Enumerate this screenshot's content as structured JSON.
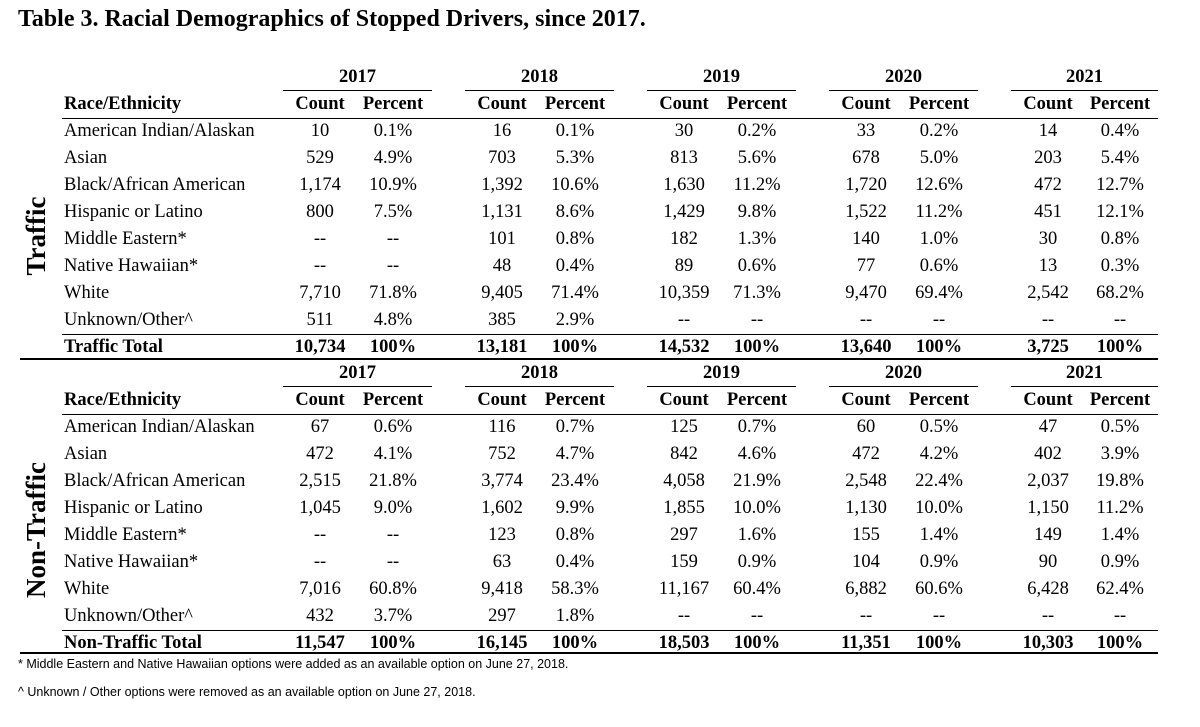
{
  "title": "Table 3. Racial Demographics of Stopped Drivers, since 2017.",
  "years": [
    "2017",
    "2018",
    "2019",
    "2020",
    "2021"
  ],
  "subheaders": {
    "race": "Race/Ethnicity",
    "count": "Count",
    "percent": "Percent"
  },
  "sections": [
    {
      "label": "Traffic",
      "rows": [
        {
          "race": "American Indian/Alaskan",
          "vals": [
            [
              "10",
              "0.1%"
            ],
            [
              "16",
              "0.1%"
            ],
            [
              "30",
              "0.2%"
            ],
            [
              "33",
              "0.2%"
            ],
            [
              "14",
              "0.4%"
            ]
          ]
        },
        {
          "race": "Asian",
          "vals": [
            [
              "529",
              "4.9%"
            ],
            [
              "703",
              "5.3%"
            ],
            [
              "813",
              "5.6%"
            ],
            [
              "678",
              "5.0%"
            ],
            [
              "203",
              "5.4%"
            ]
          ]
        },
        {
          "race": "Black/African American",
          "vals": [
            [
              "1,174",
              "10.9%"
            ],
            [
              "1,392",
              "10.6%"
            ],
            [
              "1,630",
              "11.2%"
            ],
            [
              "1,720",
              "12.6%"
            ],
            [
              "472",
              "12.7%"
            ]
          ]
        },
        {
          "race": "Hispanic or Latino",
          "vals": [
            [
              "800",
              "7.5%"
            ],
            [
              "1,131",
              "8.6%"
            ],
            [
              "1,429",
              "9.8%"
            ],
            [
              "1,522",
              "11.2%"
            ],
            [
              "451",
              "12.1%"
            ]
          ]
        },
        {
          "race": "Middle Eastern*",
          "vals": [
            [
              "--",
              "--"
            ],
            [
              "101",
              "0.8%"
            ],
            [
              "182",
              "1.3%"
            ],
            [
              "140",
              "1.0%"
            ],
            [
              "30",
              "0.8%"
            ]
          ]
        },
        {
          "race": "Native Hawaiian*",
          "vals": [
            [
              "--",
              "--"
            ],
            [
              "48",
              "0.4%"
            ],
            [
              "89",
              "0.6%"
            ],
            [
              "77",
              "0.6%"
            ],
            [
              "13",
              "0.3%"
            ]
          ]
        },
        {
          "race": "White",
          "vals": [
            [
              "7,710",
              "71.8%"
            ],
            [
              "9,405",
              "71.4%"
            ],
            [
              "10,359",
              "71.3%"
            ],
            [
              "9,470",
              "69.4%"
            ],
            [
              "2,542",
              "68.2%"
            ]
          ]
        },
        {
          "race": "Unknown/Other^",
          "vals": [
            [
              "511",
              "4.8%"
            ],
            [
              "385",
              "2.9%"
            ],
            [
              "--",
              "--"
            ],
            [
              "--",
              "--"
            ],
            [
              "--",
              "--"
            ]
          ]
        }
      ],
      "total": {
        "race": "Traffic Total",
        "vals": [
          [
            "10,734",
            "100%"
          ],
          [
            "13,181",
            "100%"
          ],
          [
            "14,532",
            "100%"
          ],
          [
            "13,640",
            "100%"
          ],
          [
            "3,725",
            "100%"
          ]
        ]
      }
    },
    {
      "label": "Non-Traffic",
      "rows": [
        {
          "race": "American Indian/Alaskan",
          "vals": [
            [
              "67",
              "0.6%"
            ],
            [
              "116",
              "0.7%"
            ],
            [
              "125",
              "0.7%"
            ],
            [
              "60",
              "0.5%"
            ],
            [
              "47",
              "0.5%"
            ]
          ]
        },
        {
          "race": "Asian",
          "vals": [
            [
              "472",
              "4.1%"
            ],
            [
              "752",
              "4.7%"
            ],
            [
              "842",
              "4.6%"
            ],
            [
              "472",
              "4.2%"
            ],
            [
              "402",
              "3.9%"
            ]
          ]
        },
        {
          "race": "Black/African American",
          "vals": [
            [
              "2,515",
              "21.8%"
            ],
            [
              "3,774",
              "23.4%"
            ],
            [
              "4,058",
              "21.9%"
            ],
            [
              "2,548",
              "22.4%"
            ],
            [
              "2,037",
              "19.8%"
            ]
          ]
        },
        {
          "race": "Hispanic or Latino",
          "vals": [
            [
              "1,045",
              "9.0%"
            ],
            [
              "1,602",
              "9.9%"
            ],
            [
              "1,855",
              "10.0%"
            ],
            [
              "1,130",
              "10.0%"
            ],
            [
              "1,150",
              "11.2%"
            ]
          ]
        },
        {
          "race": "Middle Eastern*",
          "vals": [
            [
              "--",
              "--"
            ],
            [
              "123",
              "0.8%"
            ],
            [
              "297",
              "1.6%"
            ],
            [
              "155",
              "1.4%"
            ],
            [
              "149",
              "1.4%"
            ]
          ]
        },
        {
          "race": "Native Hawaiian*",
          "vals": [
            [
              "--",
              "--"
            ],
            [
              "63",
              "0.4%"
            ],
            [
              "159",
              "0.9%"
            ],
            [
              "104",
              "0.9%"
            ],
            [
              "90",
              "0.9%"
            ]
          ]
        },
        {
          "race": "White",
          "vals": [
            [
              "7,016",
              "60.8%"
            ],
            [
              "9,418",
              "58.3%"
            ],
            [
              "11,167",
              "60.4%"
            ],
            [
              "6,882",
              "60.6%"
            ],
            [
              "6,428",
              "62.4%"
            ]
          ]
        },
        {
          "race": "Unknown/Other^",
          "vals": [
            [
              "432",
              "3.7%"
            ],
            [
              "297",
              "1.8%"
            ],
            [
              "--",
              "--"
            ],
            [
              "--",
              "--"
            ],
            [
              "--",
              "--"
            ]
          ]
        }
      ],
      "total": {
        "race": "Non-Traffic Total",
        "vals": [
          [
            "11,547",
            "100%"
          ],
          [
            "16,145",
            "100%"
          ],
          [
            "18,503",
            "100%"
          ],
          [
            "11,351",
            "100%"
          ],
          [
            "10,303",
            "100%"
          ]
        ]
      }
    }
  ],
  "footnotes": [
    "* Middle Eastern and Native Hawaiian options were added as an available option on June 27, 2018.",
    "^ Unknown / Other options were removed as an available option on June 27, 2018."
  ]
}
